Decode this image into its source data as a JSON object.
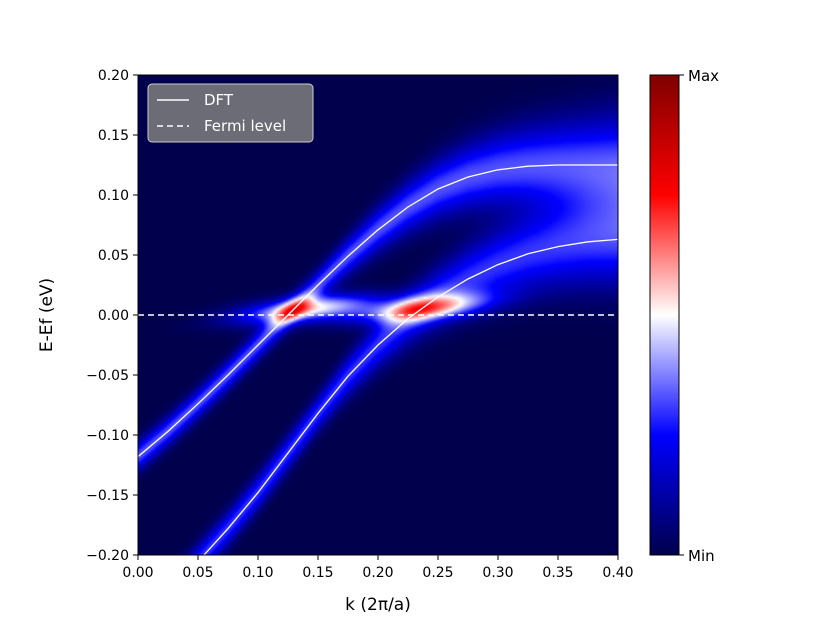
{
  "chart_data": {
    "type": "heatmap",
    "title": "",
    "xlabel": "k (2π/a)",
    "ylabel": "E-Ef (eV)",
    "xlim": [
      0.0,
      0.4
    ],
    "ylim": [
      -0.2,
      0.2
    ],
    "x_ticks": [
      "0.00",
      "0.05",
      "0.10",
      "0.15",
      "0.20",
      "0.25",
      "0.30",
      "0.35",
      "0.40"
    ],
    "y_ticks": [
      "0.20",
      "0.15",
      "0.10",
      "0.05",
      "0.00",
      "−0.05",
      "−0.10",
      "−0.15",
      "−0.20"
    ],
    "grid": false,
    "legend": {
      "placement": "top-left",
      "entries": [
        {
          "name": "DFT",
          "style": "solid",
          "color": "#ffffff"
        },
        {
          "name": "Fermi level",
          "style": "dashed",
          "color": "#ffffff"
        }
      ]
    },
    "colorbar": {
      "colormap": "seismic",
      "max_label": "Max",
      "min_label": "Min",
      "colors": [
        "#00004c",
        "#0000ff",
        "#ffffff",
        "#ff0000",
        "#7f0000"
      ]
    },
    "fermi_level": 0.0,
    "series": [
      {
        "style": "solid",
        "x": [
          0.0,
          0.025,
          0.05,
          0.075,
          0.1,
          0.125,
          0.15,
          0.175,
          0.2,
          0.225,
          0.25,
          0.275,
          0.3,
          0.325,
          0.35,
          0.375,
          0.4
        ],
        "y": [
          -0.118,
          -0.097,
          -0.074,
          -0.05,
          -0.025,
          0.0,
          0.025,
          0.049,
          0.071,
          0.09,
          0.105,
          0.115,
          0.121,
          0.124,
          0.125,
          0.125,
          0.125
        ]
      },
      {
        "style": "solid",
        "x": [
          0.055,
          0.075,
          0.1,
          0.125,
          0.15,
          0.175,
          0.2,
          0.225,
          0.25,
          0.275,
          0.3,
          0.325,
          0.35,
          0.375,
          0.4
        ],
        "y": [
          -0.2,
          -0.178,
          -0.148,
          -0.115,
          -0.082,
          -0.051,
          -0.025,
          -0.003,
          0.015,
          0.03,
          0.042,
          0.051,
          0.057,
          0.061,
          0.063
        ]
      }
    ],
    "intensity_features": [
      {
        "center_x": 0.14,
        "center_y": 0.005,
        "peak": 1.0
      },
      {
        "center_x": 0.235,
        "center_y": 0.005,
        "peak": 0.9
      }
    ]
  }
}
